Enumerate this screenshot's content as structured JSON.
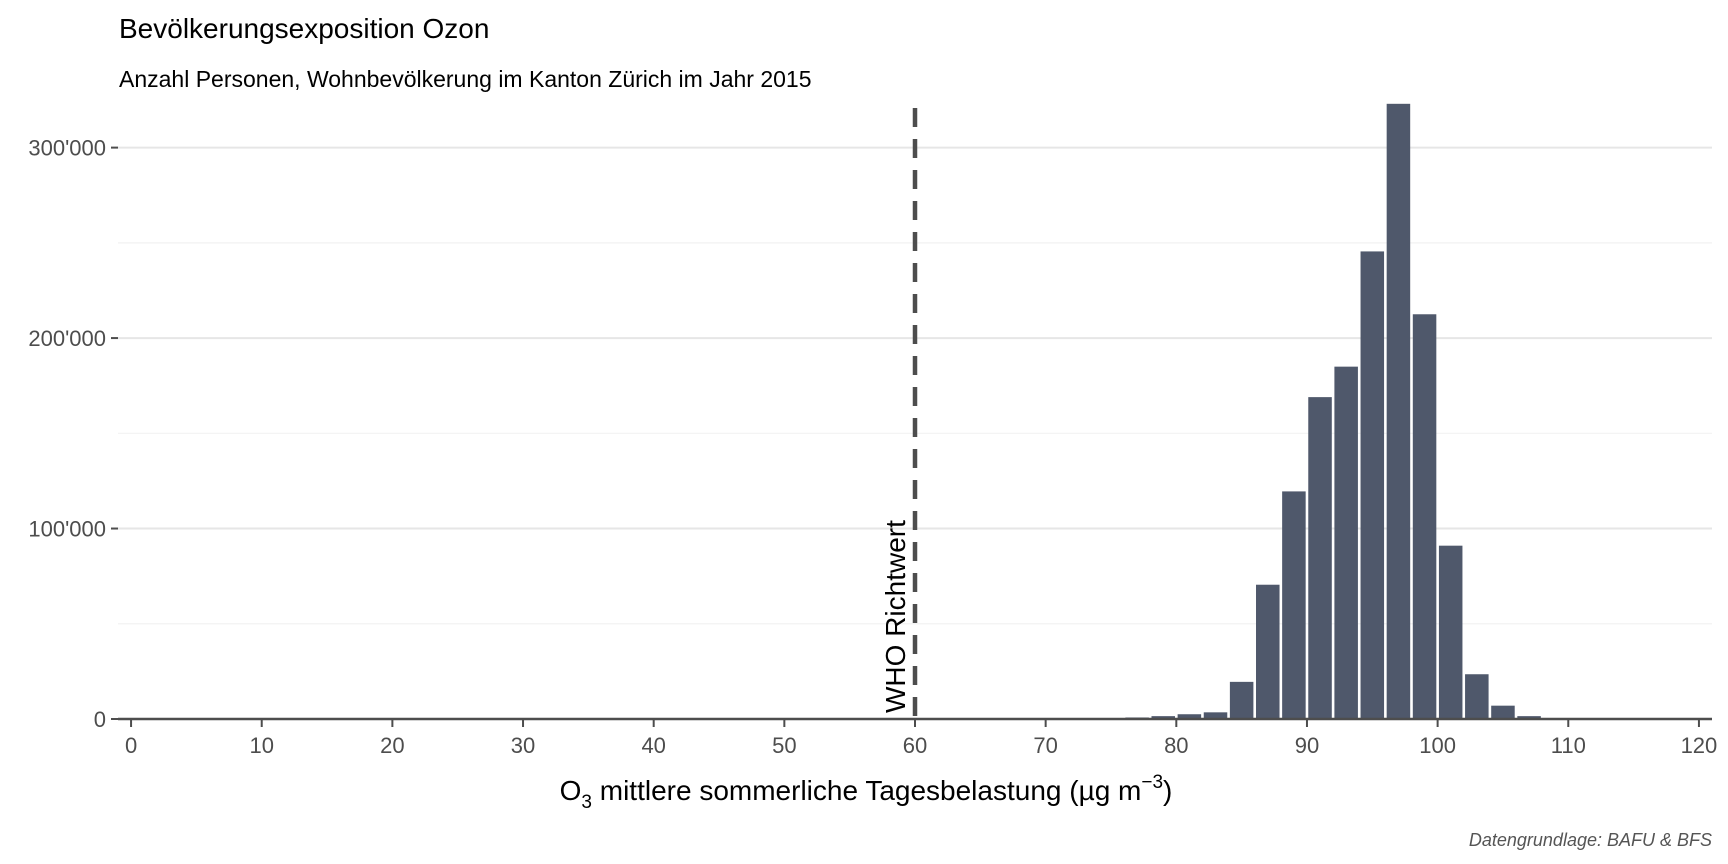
{
  "chart_data": {
    "type": "bar",
    "title": "Bevölkerungsexposition Ozon",
    "subtitle": "Anzahl Personen, Wohnbevölkerung im Kanton Zürich im Jahr 2015",
    "xlabel": {
      "prefix": "O",
      "sub": "3",
      "main": " mittlere sommerliche Tagesbelastung (µg m",
      "sup": "−3",
      "suffix": ")"
    },
    "ylabel": "",
    "caption": "Datengrundlage: BAFU & BFS",
    "xlim": [
      -1,
      121
    ],
    "ylim": [
      0,
      325000
    ],
    "x_ticks": [
      0,
      10,
      20,
      30,
      40,
      50,
      60,
      70,
      80,
      90,
      100,
      110,
      120
    ],
    "x_tick_labels": [
      "0",
      "10",
      "20",
      "30",
      "40",
      "50",
      "60",
      "70",
      "80",
      "90",
      "100",
      "110",
      "120"
    ],
    "y_ticks": [
      0,
      100000,
      200000,
      300000
    ],
    "y_tick_labels": [
      "0",
      "100'000",
      "200'000",
      "300'000"
    ],
    "y_minor_ticks": [
      50000,
      150000,
      250000
    ],
    "grid": "horizontal",
    "bar_width": 1.8,
    "bar_color": "#4f586b",
    "x": [
      77,
      79,
      81,
      83,
      85,
      87,
      89,
      91,
      93,
      95,
      97,
      99,
      101,
      103,
      105,
      107
    ],
    "values": [
      800,
      1500,
      2500,
      3500,
      19500,
      70500,
      119500,
      169000,
      185000,
      245500,
      323000,
      212500,
      91000,
      23500,
      7000,
      1500
    ],
    "reference_line": {
      "x": 60,
      "label": "WHO Richtwert",
      "color": "#4d4d4d",
      "style": "dashed"
    }
  }
}
